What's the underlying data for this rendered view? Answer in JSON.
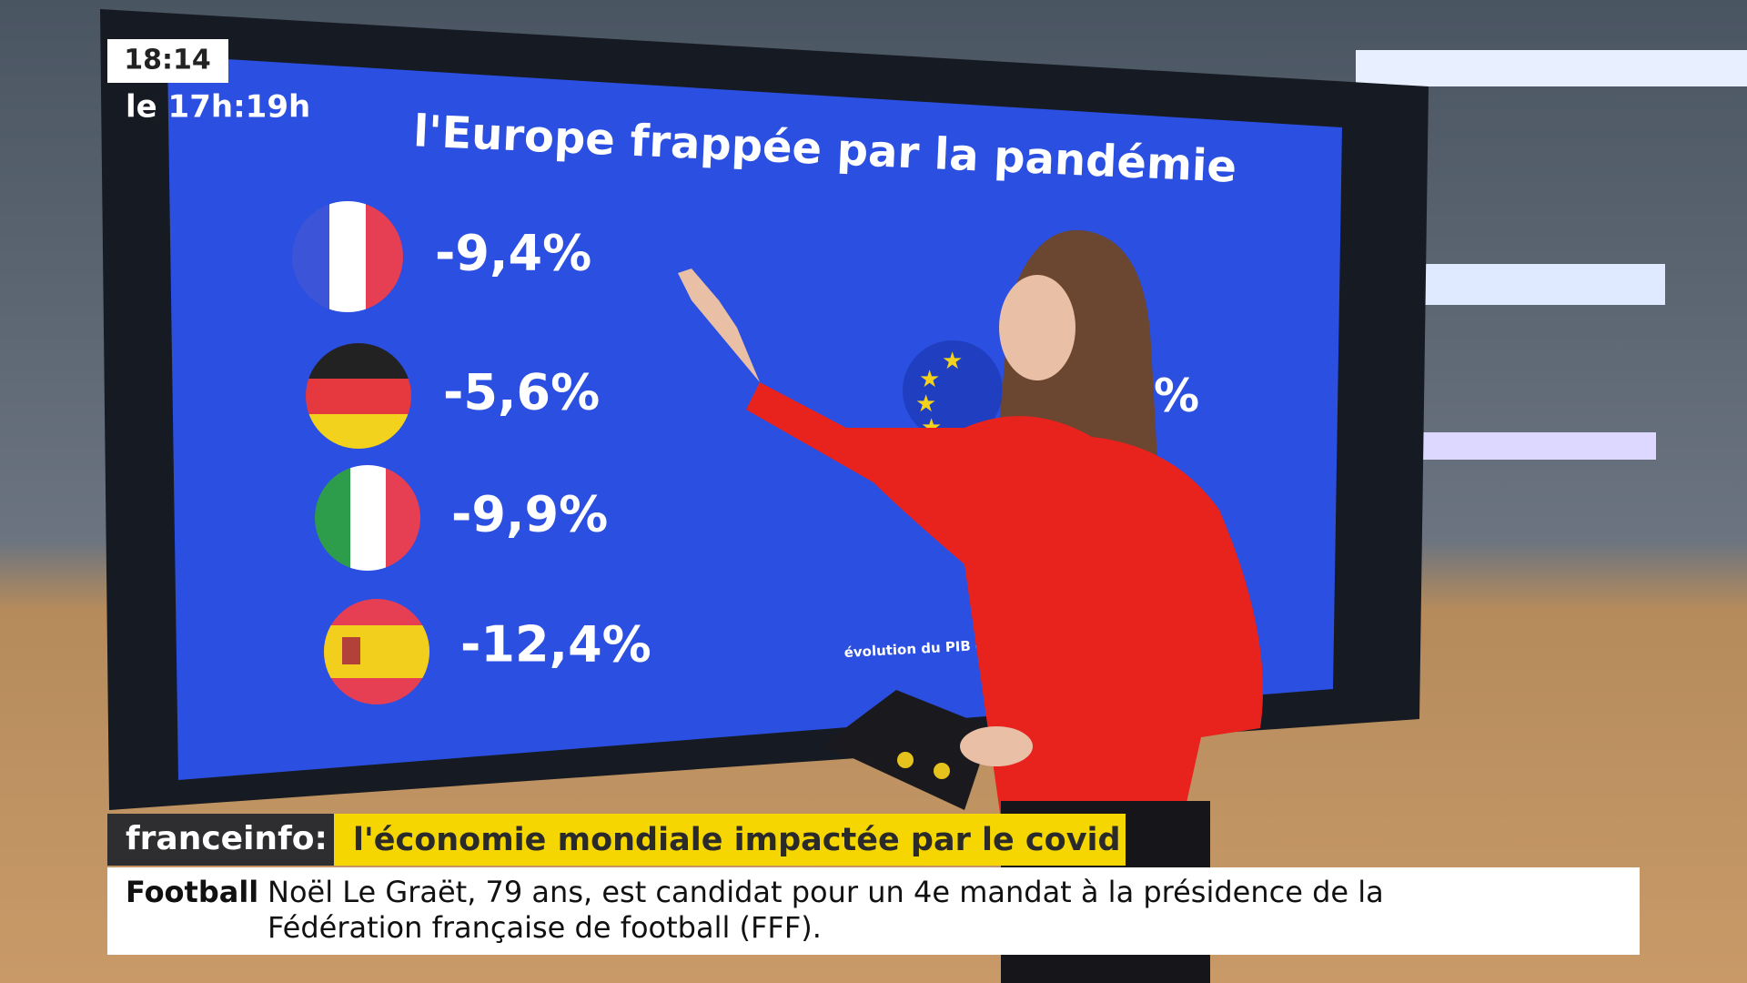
{
  "overlay": {
    "clock": "18:14",
    "program": "le 17h:19h"
  },
  "screen": {
    "title": "l'Europe frappée par la pandémie",
    "rows": [
      {
        "country": "france",
        "value": "-9,4%"
      },
      {
        "country": "germany",
        "value": "-5,6%"
      },
      {
        "country": "italy",
        "value": "-9,9%"
      },
      {
        "country": "spain",
        "value": "-12,4%"
      }
    ],
    "eu_value_fragment": "%",
    "footnote": "évolution du PIB e"
  },
  "banner": {
    "brand": "franceinfo:",
    "headline": "l'économie mondiale impactée par le covid"
  },
  "ticker": {
    "label": "Football",
    "lines": [
      "Noël Le Graët, 79 ans, est candidat pour un 4e mandat à la présidence de la",
      "Fédération française de football (FFF)."
    ]
  }
}
